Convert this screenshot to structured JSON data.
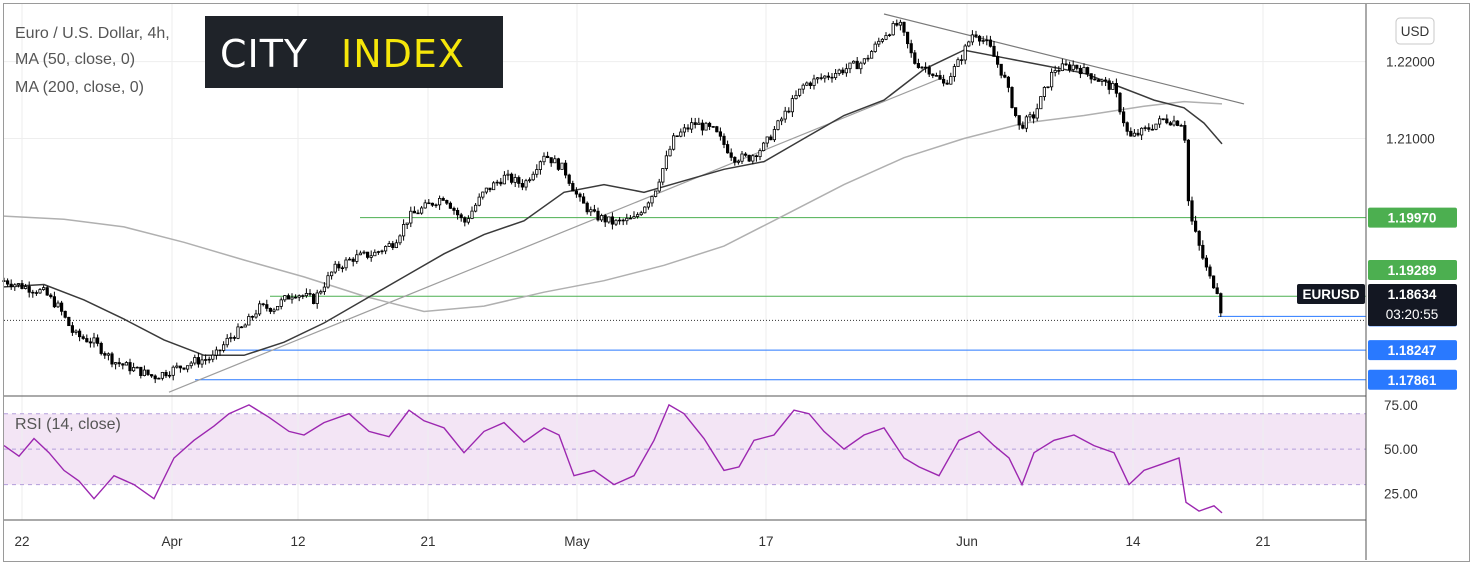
{
  "title": {
    "line1": "Euro / U.S. Dollar, 4h,",
    "line2": "MA (50, close, 0)",
    "line3": "MA (200, close, 0)"
  },
  "logo": {
    "word1": "CITY",
    "word2": "INDEX",
    "bg": "#1f2329",
    "color1": "#ffffff",
    "color2": "#f5e60a"
  },
  "currency_button": "USD",
  "rsi_label": "RSI (14, close)",
  "colors": {
    "green_line": "#4caf50",
    "blue_line": "#2979ff",
    "ma50": "#3a3a3a",
    "ma200": "#b0b0b0",
    "rsi": "#9c27b0",
    "rsi_band": "#f3e5f5",
    "candle": "#000000"
  },
  "chart_data": [
    {
      "type": "candlestick",
      "symbol": "EURUSD",
      "interval": "4h",
      "x_axis_labels": [
        "22",
        "Apr",
        "12",
        "21",
        "May",
        "17",
        "Jun",
        "14",
        "21"
      ],
      "y_axis_labels": [
        "1.22000",
        "1.21000"
      ],
      "ylim": [
        1.1765,
        1.2275
      ],
      "price_levels": [
        {
          "label": "1.19970",
          "value": 1.1997,
          "color": "#4caf50"
        },
        {
          "label": "1.19289",
          "value": 1.19289,
          "color": "#4caf50"
        },
        {
          "label": "1.18948",
          "value": 1.18948,
          "color": "#4caf50"
        },
        {
          "label": "1.18686",
          "value": 1.18686,
          "color": "#2979ff"
        },
        {
          "label": "1.18247",
          "value": 1.18247,
          "color": "#2979ff"
        },
        {
          "label": "1.17861",
          "value": 1.17861,
          "color": "#2979ff"
        }
      ],
      "current_price": {
        "symbol_label": "EURUSD",
        "value": "1.18634",
        "countdown": "03:20:55"
      },
      "close_path": [
        [
          0,
          1.1915
        ],
        [
          18,
          1.1908
        ],
        [
          40,
          1.19
        ],
        [
          55,
          1.188
        ],
        [
          70,
          1.1845
        ],
        [
          90,
          1.1835
        ],
        [
          110,
          1.181
        ],
        [
          130,
          1.18
        ],
        [
          150,
          1.179
        ],
        [
          170,
          1.18
        ],
        [
          190,
          1.181
        ],
        [
          210,
          1.1815
        ],
        [
          225,
          1.184
        ],
        [
          240,
          1.1855
        ],
        [
          255,
          1.188
        ],
        [
          270,
          1.188
        ],
        [
          290,
          1.19
        ],
        [
          310,
          1.189
        ],
        [
          330,
          1.193
        ],
        [
          350,
          1.1945
        ],
        [
          370,
          1.195
        ],
        [
          390,
          1.1965
        ],
        [
          405,
          1.1998
        ],
        [
          420,
          1.201
        ],
        [
          440,
          1.2025
        ],
        [
          460,
          1.199
        ],
        [
          480,
          1.203
        ],
        [
          500,
          1.205
        ],
        [
          520,
          1.204
        ],
        [
          540,
          1.208
        ],
        [
          560,
          1.206
        ],
        [
          575,
          1.202
        ],
        [
          590,
          1.2
        ],
        [
          610,
          1.199
        ],
        [
          630,
          1.1995
        ],
        [
          650,
          1.203
        ],
        [
          670,
          1.21
        ],
        [
          690,
          1.212
        ],
        [
          710,
          1.211
        ],
        [
          730,
          1.2075
        ],
        [
          745,
          1.2075
        ],
        [
          760,
          1.209
        ],
        [
          780,
          1.213
        ],
        [
          800,
          1.217
        ],
        [
          820,
          1.218
        ],
        [
          840,
          1.219
        ],
        [
          860,
          1.22
        ],
        [
          880,
          1.2235
        ],
        [
          895,
          1.225
        ],
        [
          910,
          1.22
        ],
        [
          925,
          1.219
        ],
        [
          940,
          1.217
        ],
        [
          955,
          1.22
        ],
        [
          970,
          1.224
        ],
        [
          985,
          1.222
        ],
        [
          1000,
          1.218
        ],
        [
          1015,
          1.2115
        ],
        [
          1030,
          1.213
        ],
        [
          1050,
          1.219
        ],
        [
          1070,
          1.2195
        ],
        [
          1090,
          1.218
        ],
        [
          1110,
          1.2165
        ],
        [
          1125,
          1.21
        ],
        [
          1140,
          1.211
        ],
        [
          1160,
          1.2125
        ],
        [
          1180,
          1.212
        ],
        [
          1185,
          1.2005
        ],
        [
          1195,
          1.196
        ],
        [
          1205,
          1.192
        ],
        [
          1215,
          1.19
        ],
        [
          1218,
          1.1863
        ]
      ],
      "ma50": [
        [
          0,
          1.1907
        ],
        [
          40,
          1.191
        ],
        [
          80,
          1.189
        ],
        [
          120,
          1.1865
        ],
        [
          160,
          1.1838
        ],
        [
          200,
          1.1818
        ],
        [
          240,
          1.1818
        ],
        [
          280,
          1.1835
        ],
        [
          320,
          1.186
        ],
        [
          360,
          1.189
        ],
        [
          400,
          1.192
        ],
        [
          440,
          1.195
        ],
        [
          480,
          1.1975
        ],
        [
          520,
          1.1993
        ],
        [
          560,
          1.203
        ],
        [
          600,
          1.204
        ],
        [
          640,
          1.203
        ],
        [
          680,
          1.2045
        ],
        [
          720,
          1.206
        ],
        [
          760,
          1.207
        ],
        [
          800,
          1.21
        ],
        [
          840,
          1.213
        ],
        [
          880,
          1.215
        ],
        [
          920,
          1.219
        ],
        [
          960,
          1.2215
        ],
        [
          1000,
          1.2205
        ],
        [
          1040,
          1.2195
        ],
        [
          1080,
          1.2185
        ],
        [
          1120,
          1.2165
        ],
        [
          1150,
          1.215
        ],
        [
          1180,
          1.214
        ],
        [
          1200,
          1.212
        ],
        [
          1218,
          1.2093
        ]
      ],
      "ma200": [
        [
          0,
          1.1999
        ],
        [
          60,
          1.1995
        ],
        [
          120,
          1.1985
        ],
        [
          180,
          1.1965
        ],
        [
          240,
          1.1942
        ],
        [
          300,
          1.192
        ],
        [
          360,
          1.1895
        ],
        [
          420,
          1.1875
        ],
        [
          480,
          1.1882
        ],
        [
          540,
          1.19
        ],
        [
          600,
          1.1915
        ],
        [
          660,
          1.1935
        ],
        [
          720,
          1.196
        ],
        [
          780,
          1.2
        ],
        [
          840,
          1.204
        ],
        [
          900,
          1.2075
        ],
        [
          960,
          1.21
        ],
        [
          1020,
          1.212
        ],
        [
          1080,
          1.213
        ],
        [
          1140,
          1.2142
        ],
        [
          1180,
          1.2148
        ],
        [
          1218,
          1.2145
        ]
      ],
      "trendlines": [
        {
          "from": [
            165,
            1.177
          ],
          "to": [
            940,
            1.218
          ],
          "color": "#9e9e9e"
        },
        {
          "from": [
            880,
            1.2262
          ],
          "to": [
            1240,
            1.2145
          ],
          "color": "#7a7a7a"
        }
      ]
    },
    {
      "type": "line",
      "name": "RSI (14, close)",
      "y_axis_labels": [
        "75.00",
        "50.00",
        "25.00"
      ],
      "ylim": [
        10,
        80
      ],
      "band": [
        30,
        70
      ],
      "rsi_path": [
        [
          0,
          52
        ],
        [
          15,
          46
        ],
        [
          30,
          56
        ],
        [
          45,
          48
        ],
        [
          60,
          38
        ],
        [
          75,
          32
        ],
        [
          90,
          22
        ],
        [
          110,
          35
        ],
        [
          130,
          30
        ],
        [
          150,
          22
        ],
        [
          170,
          45
        ],
        [
          190,
          55
        ],
        [
          210,
          63
        ],
        [
          225,
          70
        ],
        [
          245,
          75
        ],
        [
          265,
          68
        ],
        [
          285,
          60
        ],
        [
          300,
          58
        ],
        [
          320,
          65
        ],
        [
          345,
          70
        ],
        [
          365,
          60
        ],
        [
          385,
          57
        ],
        [
          405,
          72
        ],
        [
          420,
          66
        ],
        [
          440,
          62
        ],
        [
          460,
          48
        ],
        [
          480,
          60
        ],
        [
          500,
          65
        ],
        [
          520,
          54
        ],
        [
          540,
          62
        ],
        [
          555,
          58
        ],
        [
          570,
          35
        ],
        [
          590,
          38
        ],
        [
          610,
          30
        ],
        [
          630,
          35
        ],
        [
          650,
          55
        ],
        [
          665,
          75
        ],
        [
          680,
          70
        ],
        [
          700,
          56
        ],
        [
          720,
          38
        ],
        [
          735,
          40
        ],
        [
          750,
          55
        ],
        [
          770,
          58
        ],
        [
          790,
          72
        ],
        [
          805,
          70
        ],
        [
          820,
          60
        ],
        [
          840,
          50
        ],
        [
          860,
          58
        ],
        [
          880,
          62
        ],
        [
          900,
          45
        ],
        [
          915,
          40
        ],
        [
          935,
          35
        ],
        [
          955,
          55
        ],
        [
          975,
          60
        ],
        [
          990,
          52
        ],
        [
          1005,
          45
        ],
        [
          1018,
          30
        ],
        [
          1030,
          48
        ],
        [
          1050,
          55
        ],
        [
          1070,
          58
        ],
        [
          1090,
          52
        ],
        [
          1110,
          48
        ],
        [
          1125,
          30
        ],
        [
          1140,
          38
        ],
        [
          1160,
          42
        ],
        [
          1175,
          45
        ],
        [
          1182,
          20
        ],
        [
          1195,
          15
        ],
        [
          1210,
          18
        ],
        [
          1218,
          14
        ]
      ]
    }
  ]
}
